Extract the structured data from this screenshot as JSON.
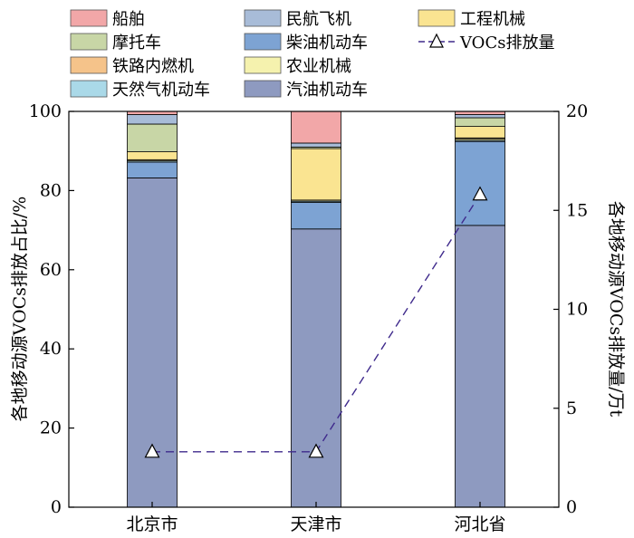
{
  "chart_data": {
    "type": "bar",
    "stacked": true,
    "categories": [
      "北京市",
      "天津市",
      "河北省"
    ],
    "ylabel": "各地移动源VOCs排放占比/%",
    "y2label": "各地移动源VOCs排放量/万t",
    "ylim": [
      0,
      100
    ],
    "y2lim": [
      0,
      20
    ],
    "yticks": [
      0,
      20,
      40,
      60,
      80,
      100
    ],
    "y2ticks": [
      0,
      5,
      10,
      15,
      20
    ],
    "legend_placement": "top",
    "series": [
      {
        "name": "汽油机动车",
        "color": "#8e9ac0",
        "values": [
          83.2,
          70.3,
          71.2
        ]
      },
      {
        "name": "柴油机动车",
        "color": "#7da3d3",
        "values": [
          4.0,
          6.7,
          21.2
        ]
      },
      {
        "name": "天然气机动车",
        "color": "#aad9e8",
        "values": [
          0.3,
          0.3,
          0.3
        ]
      },
      {
        "name": "农业机械",
        "color": "#f5f2ae",
        "values": [
          0.3,
          0.3,
          0.4
        ]
      },
      {
        "name": "铁路内燃机",
        "color": "#f5c38a",
        "values": [
          0.0,
          0.0,
          0.2
        ]
      },
      {
        "name": "工程机械",
        "color": "#fae491",
        "values": [
          2.0,
          13.0,
          2.9
        ]
      },
      {
        "name": "摩托车",
        "color": "#c8d6a6",
        "values": [
          7.0,
          0.4,
          2.2
        ]
      },
      {
        "name": "民航飞机",
        "color": "#a8bcd8",
        "values": [
          2.4,
          1.0,
          0.8
        ]
      },
      {
        "name": "船舶",
        "color": "#f2a7a8",
        "values": [
          0.8,
          8.0,
          0.8
        ]
      }
    ],
    "line": {
      "name": "VOCs排放量",
      "color": "#3f2a8c",
      "values": [
        2.8,
        2.8,
        15.8
      ]
    },
    "legend": [
      {
        "name": "船舶",
        "kind": "box",
        "color": "#f2a7a8"
      },
      {
        "name": "摩托车",
        "kind": "box",
        "color": "#c8d6a6"
      },
      {
        "name": "铁路内燃机",
        "kind": "box",
        "color": "#f5c38a"
      },
      {
        "name": "天然气机动车",
        "kind": "box",
        "color": "#aad9e8"
      },
      {
        "name": "民航飞机",
        "kind": "box",
        "color": "#a8bcd8"
      },
      {
        "name": "柴油机动车",
        "kind": "box",
        "color": "#7da3d3"
      },
      {
        "name": "农业机械",
        "kind": "box",
        "color": "#f5f2ae"
      },
      {
        "name": "汽油机动车",
        "kind": "box",
        "color": "#8e9ac0"
      },
      {
        "name": "工程机械",
        "kind": "box",
        "color": "#fae491"
      },
      {
        "name": "VOCs排放量",
        "kind": "line",
        "color": "#3f2a8c"
      }
    ]
  }
}
